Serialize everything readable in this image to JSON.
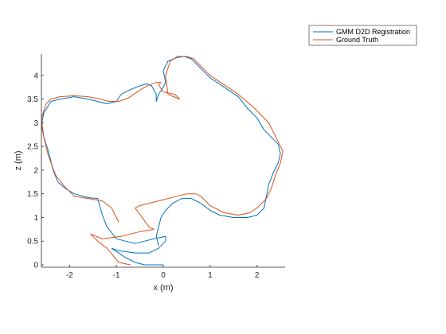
{
  "chart_data": {
    "type": "line",
    "xlabel": "x (m)",
    "ylabel": "z (m)",
    "xlim": [
      -2.6,
      2.6
    ],
    "ylim": [
      -0.05,
      4.45
    ],
    "xticks": [
      -2,
      -1,
      0,
      1,
      2
    ],
    "yticks": [
      0,
      0.5,
      1,
      1.5,
      2,
      2.5,
      3,
      3.5,
      4
    ],
    "xtick_labels": [
      "-2",
      "-1",
      "0",
      "1",
      "2"
    ],
    "ytick_labels": [
      "0",
      "0.5",
      "1",
      "1.5",
      "2",
      "2.5",
      "3",
      "3.5",
      "4"
    ],
    "grid": false,
    "legend_position": "outside-top-right",
    "series": [
      {
        "name": "GMM D2D Registration",
        "color": "#0072BD",
        "x": [
          0.0,
          -0.1,
          -0.4,
          -0.6,
          -0.8,
          -1.1,
          -0.95,
          -0.6,
          -0.3,
          -0.1,
          0.05,
          0.05,
          -0.2,
          -0.6,
          -1.0,
          -1.2,
          -1.3,
          -1.4,
          -1.6,
          -1.9,
          -2.1,
          -2.25,
          -2.35,
          -2.45,
          -2.55,
          -2.6,
          -2.55,
          -2.4,
          -2.2,
          -1.9,
          -1.6,
          -1.4,
          -1.2,
          -1.0,
          -0.9,
          -0.7,
          -0.5,
          -0.35,
          -0.25,
          -0.15,
          -0.15,
          -0.1,
          0.0,
          0.05,
          0.0,
          0.1,
          0.3,
          0.45,
          0.6,
          0.8,
          1.0,
          1.3,
          1.6,
          1.8,
          2.0,
          2.15,
          2.3,
          2.45,
          2.5,
          2.45,
          2.35,
          2.25,
          2.2,
          2.15,
          2.0,
          1.8,
          1.5,
          1.2,
          1.0,
          0.8,
          0.6,
          0.4,
          0.2,
          0.05,
          -0.05,
          -0.1,
          -0.15,
          -0.1
        ],
        "y": [
          0.0,
          0.0,
          0.0,
          0.05,
          0.15,
          0.35,
          0.3,
          0.25,
          0.25,
          0.35,
          0.5,
          0.6,
          0.55,
          0.45,
          0.55,
          0.8,
          1.05,
          1.4,
          1.42,
          1.5,
          1.62,
          1.75,
          2.0,
          2.4,
          2.7,
          2.95,
          3.2,
          3.45,
          3.5,
          3.55,
          3.5,
          3.45,
          3.4,
          3.45,
          3.6,
          3.7,
          3.78,
          3.82,
          3.78,
          3.6,
          3.45,
          3.6,
          3.75,
          3.85,
          4.1,
          4.3,
          4.38,
          4.4,
          4.35,
          4.15,
          3.95,
          3.75,
          3.55,
          3.3,
          3.1,
          2.85,
          2.7,
          2.55,
          2.35,
          2.15,
          1.95,
          1.7,
          1.45,
          1.2,
          1.05,
          1.0,
          1.0,
          1.05,
          1.15,
          1.3,
          1.4,
          1.4,
          1.3,
          1.15,
          1.0,
          0.8,
          0.6,
          0.4
        ]
      },
      {
        "name": "Ground Truth",
        "color": "#D95319",
        "x": [
          -0.7,
          -0.95,
          -1.2,
          -1.4,
          -1.55,
          -1.3,
          -0.9,
          -0.5,
          -0.2,
          -0.3,
          -0.6,
          -0.5,
          -0.3,
          -0.1,
          0.1,
          0.3,
          0.5,
          0.7,
          0.8,
          1.0,
          1.3,
          1.6,
          1.85,
          2.0,
          2.2,
          2.3,
          2.4,
          2.5,
          2.55,
          2.45,
          2.35,
          2.25,
          2.1,
          1.9,
          1.6,
          1.3,
          1.0,
          0.8,
          0.65,
          0.5,
          0.3,
          0.15,
          0.05,
          0.1,
          0.35,
          0.25,
          0.0,
          -0.1,
          -0.05,
          -0.15,
          -0.3,
          -0.45,
          -0.6,
          -0.75,
          -0.95,
          -1.15,
          -1.35,
          -1.6,
          -1.9,
          -2.2,
          -2.4,
          -2.5,
          -2.6,
          -2.55,
          -2.45,
          -2.3,
          -2.1,
          -1.9,
          -1.6,
          -1.3,
          -1.1,
          -0.95
        ],
        "y": [
          0.0,
          0.05,
          0.35,
          0.5,
          0.65,
          0.55,
          0.6,
          0.7,
          0.75,
          0.8,
          1.2,
          1.25,
          1.3,
          1.35,
          1.4,
          1.45,
          1.5,
          1.5,
          1.45,
          1.25,
          1.1,
          1.05,
          1.1,
          1.2,
          1.4,
          1.6,
          1.9,
          2.15,
          2.4,
          2.6,
          2.8,
          3.0,
          3.15,
          3.35,
          3.6,
          3.8,
          4.0,
          4.2,
          4.35,
          4.4,
          4.4,
          4.3,
          4.0,
          3.6,
          3.5,
          3.6,
          3.65,
          3.8,
          3.85,
          3.85,
          3.8,
          3.72,
          3.62,
          3.52,
          3.45,
          3.45,
          3.5,
          3.55,
          3.57,
          3.55,
          3.5,
          3.4,
          3.1,
          2.7,
          2.3,
          1.9,
          1.65,
          1.45,
          1.4,
          1.35,
          1.2,
          0.9
        ]
      }
    ]
  }
}
